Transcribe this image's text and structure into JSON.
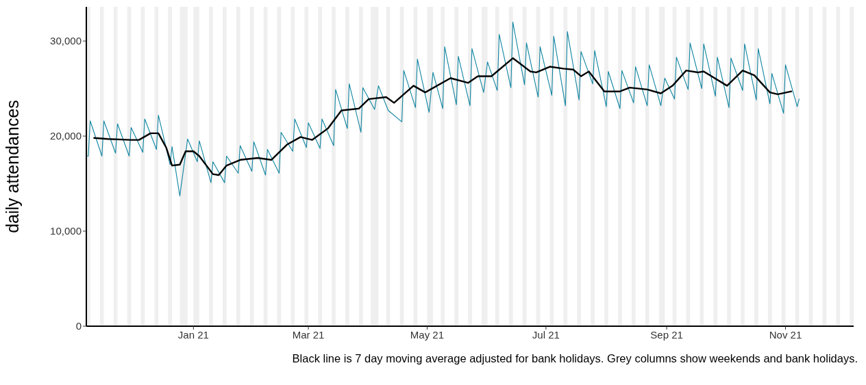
{
  "chart_data": {
    "type": "line",
    "ylabel": "daily attendances",
    "annotations": [
      "Black line is 7 day moving average adjusted for bank holidays. Grey columns show weekends and bank holidays."
    ],
    "xlim": [
      "2020-11-07",
      "2021-12-06"
    ],
    "xticks": [
      {
        "value": "2021-01-01",
        "label": "Jan 21"
      },
      {
        "value": "2021-03-01",
        "label": "Mar 21"
      },
      {
        "value": "2021-05-01",
        "label": "May 21"
      },
      {
        "value": "2021-07-01",
        "label": "Jul 21"
      },
      {
        "value": "2021-09-01",
        "label": "Sep 21"
      },
      {
        "value": "2021-11-01",
        "label": "Nov 21"
      }
    ],
    "ylim": [
      0,
      33600
    ],
    "yticks": [
      {
        "value": 0,
        "label": "0"
      },
      {
        "value": 10000,
        "label": "10,000"
      },
      {
        "value": 20000,
        "label": "20,000"
      },
      {
        "value": 30000,
        "label": "30,000"
      }
    ],
    "marker": "none",
    "series": [
      {
        "color": "#0e84a0",
        "x": [
          "2020-11-07",
          "2020-11-08",
          "2020-11-09",
          "2020-11-15",
          "2020-11-16",
          "2020-11-22",
          "2020-11-23",
          "2020-11-29",
          "2020-11-30",
          "2020-12-06",
          "2020-12-07",
          "2020-12-13",
          "2020-12-14",
          "2020-12-20",
          "2020-12-21",
          "2020-12-25",
          "2020-12-29",
          "2021-01-03",
          "2021-01-04",
          "2021-01-10",
          "2021-01-11",
          "2021-01-17",
          "2021-01-18",
          "2021-01-24",
          "2021-01-25",
          "2021-01-31",
          "2021-02-01",
          "2021-02-07",
          "2021-02-08",
          "2021-02-14",
          "2021-02-15",
          "2021-02-21",
          "2021-02-22",
          "2021-02-28",
          "2021-03-01",
          "2021-03-07",
          "2021-03-08",
          "2021-03-14",
          "2021-03-15",
          "2021-03-21",
          "2021-03-22",
          "2021-03-28",
          "2021-03-29",
          "2021-04-04",
          "2021-04-06",
          "2021-04-11",
          "2021-04-18",
          "2021-04-19",
          "2021-04-25",
          "2021-04-26",
          "2021-05-02",
          "2021-05-04",
          "2021-05-09",
          "2021-05-10",
          "2021-05-16",
          "2021-05-17",
          "2021-05-23",
          "2021-05-24",
          "2021-05-30",
          "2021-06-01",
          "2021-06-06",
          "2021-06-07",
          "2021-06-13",
          "2021-06-14",
          "2021-06-20",
          "2021-06-21",
          "2021-06-27",
          "2021-06-28",
          "2021-07-04",
          "2021-07-05",
          "2021-07-11",
          "2021-07-12",
          "2021-07-18",
          "2021-07-19",
          "2021-07-25",
          "2021-07-26",
          "2021-08-01",
          "2021-08-02",
          "2021-08-08",
          "2021-08-09",
          "2021-08-15",
          "2021-08-16",
          "2021-08-22",
          "2021-08-23",
          "2021-08-29",
          "2021-08-31",
          "2021-09-05",
          "2021-09-06",
          "2021-09-12",
          "2021-09-13",
          "2021-09-19",
          "2021-09-20",
          "2021-09-26",
          "2021-09-27",
          "2021-10-03",
          "2021-10-04",
          "2021-10-10",
          "2021-10-11",
          "2021-10-17",
          "2021-10-18",
          "2021-10-24",
          "2021-10-25",
          "2021-10-31",
          "2021-11-01",
          "2021-11-07",
          "2021-11-08"
        ],
        "values": [
          17900,
          17900,
          21600,
          17900,
          21600,
          18200,
          21300,
          17900,
          20900,
          18300,
          21800,
          18600,
          22200,
          17000,
          18900,
          13700,
          19700,
          17300,
          19500,
          15100,
          17300,
          15100,
          17900,
          16100,
          19000,
          16300,
          19400,
          15900,
          18600,
          16100,
          20400,
          18400,
          21800,
          18800,
          21400,
          18700,
          21800,
          19000,
          24900,
          20800,
          25500,
          20400,
          25100,
          22800,
          25300,
          22700,
          21500,
          26900,
          23000,
          28100,
          22500,
          26700,
          22900,
          29400,
          23300,
          28400,
          23200,
          29200,
          24600,
          27800,
          24800,
          30700,
          25100,
          32000,
          25400,
          29800,
          24100,
          29400,
          24300,
          30500,
          23200,
          31000,
          23800,
          28900,
          25500,
          29000,
          23100,
          26800,
          22900,
          26900,
          23500,
          27300,
          23200,
          27500,
          23200,
          26100,
          23900,
          28300,
          24900,
          29800,
          25000,
          29700,
          24200,
          28300,
          23000,
          28200,
          24800,
          29700,
          23800,
          29200,
          23400,
          26600,
          22400,
          27500,
          23100,
          23900
        ]
      },
      {
        "color": "#000000",
        "x": [
          "2020-11-11",
          "2020-11-18",
          "2020-11-30",
          "2020-12-04",
          "2020-12-10",
          "2020-12-14",
          "2020-12-18",
          "2020-12-21",
          "2020-12-25",
          "2020-12-28",
          "2021-01-01",
          "2021-01-04",
          "2021-01-11",
          "2021-01-14",
          "2021-01-18",
          "2021-01-25",
          "2021-02-03",
          "2021-02-10",
          "2021-02-18",
          "2021-02-25",
          "2021-03-03",
          "2021-03-11",
          "2021-03-18",
          "2021-03-27",
          "2021-04-01",
          "2021-04-10",
          "2021-04-14",
          "2021-04-24",
          "2021-04-30",
          "2021-05-13",
          "2021-05-22",
          "2021-05-27",
          "2021-06-03",
          "2021-06-14",
          "2021-06-23",
          "2021-06-26",
          "2021-07-03",
          "2021-07-10",
          "2021-07-15",
          "2021-07-19",
          "2021-07-23",
          "2021-07-31",
          "2021-08-08",
          "2021-08-13",
          "2021-08-22",
          "2021-08-29",
          "2021-09-04",
          "2021-09-11",
          "2021-09-17",
          "2021-09-20",
          "2021-10-02",
          "2021-10-10",
          "2021-10-16",
          "2021-10-24",
          "2021-10-28",
          "2021-11-04"
        ],
        "values": [
          19800,
          19700,
          19600,
          19600,
          20300,
          20300,
          18800,
          16900,
          17000,
          18400,
          18400,
          17900,
          16000,
          15900,
          16900,
          17500,
          17700,
          17500,
          19100,
          19900,
          19600,
          20800,
          22700,
          22900,
          23900,
          24100,
          23500,
          25300,
          24600,
          26100,
          25600,
          26300,
          26300,
          28200,
          26800,
          26700,
          27300,
          27100,
          27000,
          26300,
          26800,
          24700,
          24700,
          25100,
          24900,
          24500,
          25300,
          26900,
          26700,
          26800,
          25300,
          26900,
          26400,
          24600,
          24400,
          24700
        ]
      }
    ],
    "bands": [
      {
        "axis": "x",
        "from": "2020-11-07",
        "to": "2020-11-09",
        "color": "#efefef"
      },
      {
        "axis": "x",
        "from": "2020-11-14",
        "to": "2020-11-16",
        "color": "#efefef"
      },
      {
        "axis": "x",
        "from": "2020-11-21",
        "to": "2020-11-23",
        "color": "#efefef"
      },
      {
        "axis": "x",
        "from": "2020-11-28",
        "to": "2020-11-30",
        "color": "#efefef"
      },
      {
        "axis": "x",
        "from": "2020-12-05",
        "to": "2020-12-07",
        "color": "#efefef"
      },
      {
        "axis": "x",
        "from": "2020-12-12",
        "to": "2020-12-14",
        "color": "#efefef"
      },
      {
        "axis": "x",
        "from": "2020-12-19",
        "to": "2020-12-21",
        "color": "#efefef"
      },
      {
        "axis": "x",
        "from": "2020-12-25",
        "to": "2020-12-29",
        "color": "#efefef"
      },
      {
        "axis": "x",
        "from": "2021-01-01",
        "to": "2021-01-04",
        "color": "#efefef"
      },
      {
        "axis": "x",
        "from": "2021-01-09",
        "to": "2021-01-11",
        "color": "#efefef"
      },
      {
        "axis": "x",
        "from": "2021-01-16",
        "to": "2021-01-18",
        "color": "#efefef"
      },
      {
        "axis": "x",
        "from": "2021-01-23",
        "to": "2021-01-25",
        "color": "#efefef"
      },
      {
        "axis": "x",
        "from": "2021-01-30",
        "to": "2021-02-01",
        "color": "#efefef"
      },
      {
        "axis": "x",
        "from": "2021-02-06",
        "to": "2021-02-08",
        "color": "#efefef"
      },
      {
        "axis": "x",
        "from": "2021-02-13",
        "to": "2021-02-15",
        "color": "#efefef"
      },
      {
        "axis": "x",
        "from": "2021-02-20",
        "to": "2021-02-22",
        "color": "#efefef"
      },
      {
        "axis": "x",
        "from": "2021-02-27",
        "to": "2021-03-01",
        "color": "#efefef"
      },
      {
        "axis": "x",
        "from": "2021-03-06",
        "to": "2021-03-08",
        "color": "#efefef"
      },
      {
        "axis": "x",
        "from": "2021-03-13",
        "to": "2021-03-15",
        "color": "#efefef"
      },
      {
        "axis": "x",
        "from": "2021-03-20",
        "to": "2021-03-22",
        "color": "#efefef"
      },
      {
        "axis": "x",
        "from": "2021-03-27",
        "to": "2021-03-29",
        "color": "#efefef"
      },
      {
        "axis": "x",
        "from": "2021-04-02",
        "to": "2021-04-06",
        "color": "#efefef"
      },
      {
        "axis": "x",
        "from": "2021-04-10",
        "to": "2021-04-12",
        "color": "#efefef"
      },
      {
        "axis": "x",
        "from": "2021-04-17",
        "to": "2021-04-19",
        "color": "#efefef"
      },
      {
        "axis": "x",
        "from": "2021-04-24",
        "to": "2021-04-26",
        "color": "#efefef"
      },
      {
        "axis": "x",
        "from": "2021-05-01",
        "to": "2021-05-04",
        "color": "#efefef"
      },
      {
        "axis": "x",
        "from": "2021-05-08",
        "to": "2021-05-10",
        "color": "#efefef"
      },
      {
        "axis": "x",
        "from": "2021-05-15",
        "to": "2021-05-17",
        "color": "#efefef"
      },
      {
        "axis": "x",
        "from": "2021-05-22",
        "to": "2021-05-24",
        "color": "#efefef"
      },
      {
        "axis": "x",
        "from": "2021-05-29",
        "to": "2021-06-01",
        "color": "#efefef"
      },
      {
        "axis": "x",
        "from": "2021-06-05",
        "to": "2021-06-07",
        "color": "#efefef"
      },
      {
        "axis": "x",
        "from": "2021-06-12",
        "to": "2021-06-14",
        "color": "#efefef"
      },
      {
        "axis": "x",
        "from": "2021-06-19",
        "to": "2021-06-21",
        "color": "#efefef"
      },
      {
        "axis": "x",
        "from": "2021-06-26",
        "to": "2021-06-28",
        "color": "#efefef"
      },
      {
        "axis": "x",
        "from": "2021-07-03",
        "to": "2021-07-05",
        "color": "#efefef"
      },
      {
        "axis": "x",
        "from": "2021-07-10",
        "to": "2021-07-12",
        "color": "#efefef"
      },
      {
        "axis": "x",
        "from": "2021-07-17",
        "to": "2021-07-19",
        "color": "#efefef"
      },
      {
        "axis": "x",
        "from": "2021-07-24",
        "to": "2021-07-26",
        "color": "#efefef"
      },
      {
        "axis": "x",
        "from": "2021-07-31",
        "to": "2021-08-02",
        "color": "#efefef"
      },
      {
        "axis": "x",
        "from": "2021-08-07",
        "to": "2021-08-09",
        "color": "#efefef"
      },
      {
        "axis": "x",
        "from": "2021-08-14",
        "to": "2021-08-16",
        "color": "#efefef"
      },
      {
        "axis": "x",
        "from": "2021-08-21",
        "to": "2021-08-23",
        "color": "#efefef"
      },
      {
        "axis": "x",
        "from": "2021-08-28",
        "to": "2021-08-31",
        "color": "#efefef"
      },
      {
        "axis": "x",
        "from": "2021-09-04",
        "to": "2021-09-06",
        "color": "#efefef"
      },
      {
        "axis": "x",
        "from": "2021-09-11",
        "to": "2021-09-13",
        "color": "#efefef"
      },
      {
        "axis": "x",
        "from": "2021-09-18",
        "to": "2021-09-20",
        "color": "#efefef"
      },
      {
        "axis": "x",
        "from": "2021-09-25",
        "to": "2021-09-27",
        "color": "#efefef"
      },
      {
        "axis": "x",
        "from": "2021-10-02",
        "to": "2021-10-04",
        "color": "#efefef"
      },
      {
        "axis": "x",
        "from": "2021-10-09",
        "to": "2021-10-11",
        "color": "#efefef"
      },
      {
        "axis": "x",
        "from": "2021-10-16",
        "to": "2021-10-18",
        "color": "#efefef"
      },
      {
        "axis": "x",
        "from": "2021-10-23",
        "to": "2021-10-25",
        "color": "#efefef"
      },
      {
        "axis": "x",
        "from": "2021-10-30",
        "to": "2021-11-01",
        "color": "#efefef"
      },
      {
        "axis": "x",
        "from": "2021-11-06",
        "to": "2021-11-08",
        "color": "#efefef"
      },
      {
        "axis": "x",
        "from": "2021-11-13",
        "to": "2021-11-15",
        "color": "#efefef"
      },
      {
        "axis": "x",
        "from": "2021-11-20",
        "to": "2021-11-22",
        "color": "#efefef"
      },
      {
        "axis": "x",
        "from": "2021-11-27",
        "to": "2021-11-29",
        "color": "#efefef"
      },
      {
        "axis": "x",
        "from": "2021-12-04",
        "to": "2021-12-06",
        "color": "#efefef"
      }
    ]
  }
}
